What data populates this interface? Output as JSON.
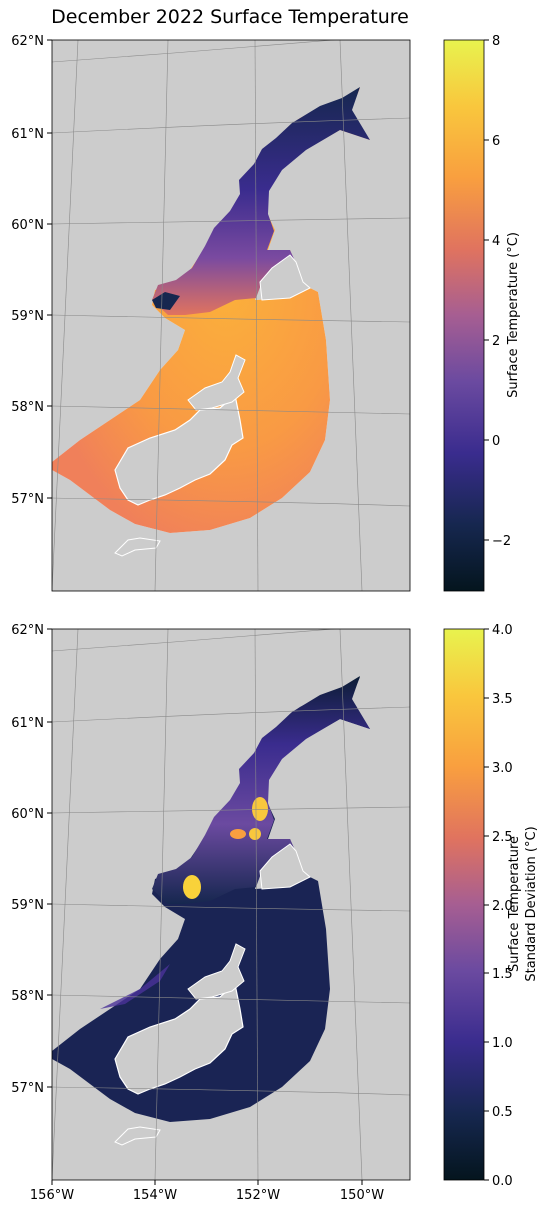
{
  "title": "December 2022 Surface Temperature",
  "lat_labels": [
    "62°N",
    "61°N",
    "60°N",
    "59°N",
    "58°N",
    "57°N"
  ],
  "lon_labels": [
    "156°W",
    "154°W",
    "152°W",
    "150°W"
  ],
  "panels": [
    {
      "name": "surface-temperature",
      "colorbar": {
        "label": "Surface Temperature (°C)",
        "label_lines": [
          "Surface Temperature (°C)"
        ],
        "min": -3,
        "max": 8,
        "ticks": [
          "8",
          "6",
          "4",
          "2",
          "0",
          "−2"
        ]
      }
    },
    {
      "name": "surface-temperature-std",
      "colorbar": {
        "label": "Surface Temperature Standard Deviation (°C)",
        "label_lines": [
          "Surface Temperature",
          "Standard Deviation (°C)"
        ],
        "min": 0,
        "max": 4,
        "ticks": [
          "4.0",
          "3.5",
          "3.0",
          "2.5",
          "2.0",
          "1.5",
          "1.0",
          "0.5",
          "0.0"
        ]
      }
    }
  ],
  "colormap": [
    "#04151e",
    "#16274f",
    "#3a2c8e",
    "#6b4aa0",
    "#a65e92",
    "#e0735f",
    "#f99f3f",
    "#f9c73d",
    "#e8f34e"
  ]
}
